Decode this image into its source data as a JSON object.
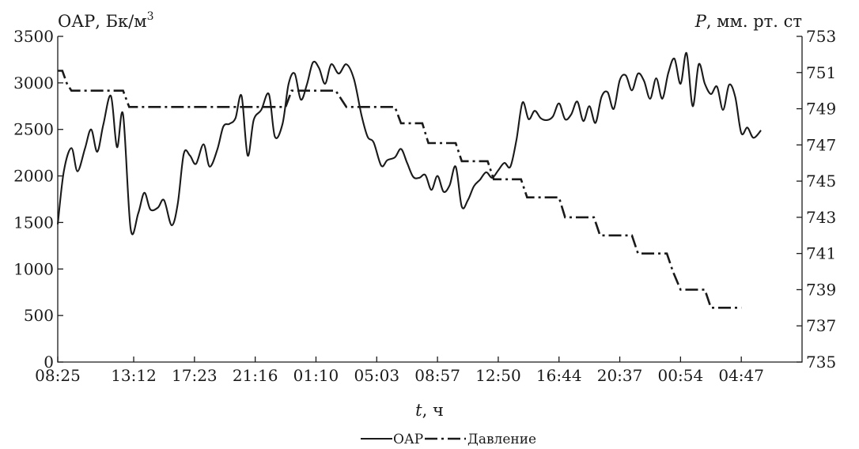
{
  "chart_data": {
    "type": "line",
    "y_left": {
      "title": "ОАР, Бк/м",
      "title_sup": "3",
      "ticks": [
        "0",
        "500",
        "1000",
        "1500",
        "2000",
        "2500",
        "3000",
        "3500"
      ],
      "ylim": [
        0,
        3500
      ]
    },
    "y_right": {
      "title_italic": "P",
      "title_rest": ", мм. рт. ст",
      "ticks": [
        "735",
        "737",
        "739",
        "741",
        "743",
        "745",
        "747",
        "749",
        "751",
        "753"
      ],
      "ylim": [
        735,
        753
      ]
    },
    "x_axis": {
      "title_italic": "t",
      "title_rest": ", ч",
      "ticks": [
        "08:25",
        "13:12",
        "17:23",
        "21:16",
        "01:10",
        "05:03",
        "08:57",
        "12:50",
        "16:44",
        "20:37",
        "00:54",
        "04:47"
      ],
      "tick_index": [
        0,
        5,
        9,
        13,
        17,
        21,
        25,
        29,
        33,
        37,
        41,
        45
      ],
      "range": [
        0,
        49
      ]
    },
    "legend": {
      "placement": "bottom-center",
      "items": [
        "ОАР",
        "Давление"
      ]
    },
    "series": [
      {
        "name": "ОАР",
        "axis": "left",
        "style": "solid",
        "points": [
          [
            0.0,
            1480
          ],
          [
            0.4,
            2050
          ],
          [
            0.9,
            2300
          ],
          [
            1.3,
            2050
          ],
          [
            1.8,
            2300
          ],
          [
            2.2,
            2500
          ],
          [
            2.6,
            2260
          ],
          [
            3.0,
            2550
          ],
          [
            3.5,
            2860
          ],
          [
            3.9,
            2310
          ],
          [
            4.3,
            2660
          ],
          [
            4.8,
            1430
          ],
          [
            5.3,
            1600
          ],
          [
            5.7,
            1820
          ],
          [
            6.1,
            1640
          ],
          [
            6.6,
            1660
          ],
          [
            7.0,
            1740
          ],
          [
            7.5,
            1470
          ],
          [
            7.9,
            1700
          ],
          [
            8.3,
            2240
          ],
          [
            8.7,
            2220
          ],
          [
            9.1,
            2130
          ],
          [
            9.6,
            2340
          ],
          [
            10.0,
            2100
          ],
          [
            10.5,
            2280
          ],
          [
            10.9,
            2530
          ],
          [
            11.3,
            2560
          ],
          [
            11.7,
            2620
          ],
          [
            12.1,
            2860
          ],
          [
            12.5,
            2220
          ],
          [
            12.9,
            2600
          ],
          [
            13.4,
            2710
          ],
          [
            13.9,
            2880
          ],
          [
            14.3,
            2420
          ],
          [
            14.8,
            2560
          ],
          [
            15.2,
            2990
          ],
          [
            15.6,
            3100
          ],
          [
            16.0,
            2820
          ],
          [
            16.4,
            2980
          ],
          [
            16.8,
            3220
          ],
          [
            17.2,
            3160
          ],
          [
            17.6,
            2990
          ],
          [
            18.0,
            3200
          ],
          [
            18.5,
            3100
          ],
          [
            19.0,
            3200
          ],
          [
            19.5,
            3040
          ],
          [
            20.0,
            2650
          ],
          [
            20.4,
            2420
          ],
          [
            20.8,
            2360
          ],
          [
            21.3,
            2110
          ],
          [
            21.7,
            2170
          ],
          [
            22.2,
            2200
          ],
          [
            22.6,
            2290
          ],
          [
            23.0,
            2140
          ],
          [
            23.4,
            1990
          ],
          [
            23.8,
            1980
          ],
          [
            24.2,
            2010
          ],
          [
            24.6,
            1850
          ],
          [
            25.0,
            2000
          ],
          [
            25.4,
            1830
          ],
          [
            25.8,
            1900
          ],
          [
            26.2,
            2100
          ],
          [
            26.6,
            1670
          ],
          [
            27.0,
            1740
          ],
          [
            27.4,
            1890
          ],
          [
            27.8,
            1960
          ],
          [
            28.2,
            2040
          ],
          [
            28.6,
            1980
          ],
          [
            29.0,
            2060
          ],
          [
            29.4,
            2140
          ],
          [
            29.8,
            2100
          ],
          [
            30.2,
            2390
          ],
          [
            30.6,
            2790
          ],
          [
            31.0,
            2610
          ],
          [
            31.4,
            2700
          ],
          [
            31.8,
            2620
          ],
          [
            32.2,
            2600
          ],
          [
            32.6,
            2640
          ],
          [
            33.0,
            2780
          ],
          [
            33.4,
            2610
          ],
          [
            33.8,
            2660
          ],
          [
            34.2,
            2800
          ],
          [
            34.6,
            2590
          ],
          [
            35.0,
            2750
          ],
          [
            35.4,
            2570
          ],
          [
            35.8,
            2850
          ],
          [
            36.2,
            2900
          ],
          [
            36.6,
            2720
          ],
          [
            37.0,
            3030
          ],
          [
            37.4,
            3080
          ],
          [
            37.8,
            2920
          ],
          [
            38.2,
            3100
          ],
          [
            38.6,
            3020
          ],
          [
            39.0,
            2830
          ],
          [
            39.4,
            3050
          ],
          [
            39.8,
            2830
          ],
          [
            40.2,
            3110
          ],
          [
            40.6,
            3260
          ],
          [
            41.0,
            2990
          ],
          [
            41.4,
            3320
          ],
          [
            41.8,
            2750
          ],
          [
            42.2,
            3200
          ],
          [
            42.6,
            2990
          ],
          [
            43.0,
            2880
          ],
          [
            43.4,
            2960
          ],
          [
            43.8,
            2710
          ],
          [
            44.2,
            2980
          ],
          [
            44.6,
            2850
          ],
          [
            45.0,
            2460
          ],
          [
            45.4,
            2520
          ],
          [
            45.8,
            2410
          ],
          [
            46.3,
            2490
          ]
        ]
      },
      {
        "name": "Давление",
        "axis": "right",
        "style": "dash-dot",
        "points": [
          [
            0.0,
            751.1
          ],
          [
            0.3,
            751.1
          ],
          [
            0.6,
            750.4
          ],
          [
            0.9,
            750.0
          ],
          [
            3.4,
            750.0
          ],
          [
            4.3,
            750.0
          ],
          [
            4.7,
            749.1
          ],
          [
            12.5,
            749.1
          ],
          [
            15.0,
            749.1
          ],
          [
            15.4,
            750.0
          ],
          [
            18.3,
            750.0
          ],
          [
            19.0,
            749.1
          ],
          [
            22.2,
            749.1
          ],
          [
            22.6,
            748.2
          ],
          [
            24.0,
            748.2
          ],
          [
            24.4,
            747.1
          ],
          [
            26.2,
            747.1
          ],
          [
            26.6,
            746.1
          ],
          [
            28.3,
            746.1
          ],
          [
            28.7,
            745.1
          ],
          [
            30.5,
            745.1
          ],
          [
            30.9,
            744.1
          ],
          [
            33.0,
            744.1
          ],
          [
            33.4,
            743.0
          ],
          [
            35.3,
            743.0
          ],
          [
            35.7,
            742.0
          ],
          [
            37.8,
            742.0
          ],
          [
            38.2,
            741.0
          ],
          [
            40.1,
            741.0
          ],
          [
            40.5,
            740.0
          ],
          [
            41.0,
            739.0
          ],
          [
            42.6,
            739.0
          ],
          [
            43.0,
            738.0
          ],
          [
            45.0,
            738.0
          ]
        ]
      }
    ]
  }
}
